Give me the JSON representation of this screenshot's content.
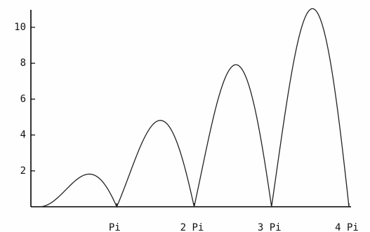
{
  "chart_data": {
    "type": "line",
    "title": "",
    "xlabel": "",
    "ylabel": "",
    "function": "x * |sin(x)|",
    "xlim": [
      0,
      12.566
    ],
    "ylim": [
      0,
      11.2
    ],
    "x_ticks": [
      {
        "value": 3.1416,
        "label": "Pi"
      },
      {
        "value": 6.2832,
        "label": "2 Pi"
      },
      {
        "value": 9.4248,
        "label": "3 Pi"
      },
      {
        "value": 12.5664,
        "label": "4 Pi"
      }
    ],
    "y_ticks": [
      {
        "value": 2,
        "label": "2"
      },
      {
        "value": 4,
        "label": "4"
      },
      {
        "value": 6,
        "label": "6"
      },
      {
        "value": 8,
        "label": "8"
      },
      {
        "value": 10,
        "label": "10"
      }
    ],
    "grid": false,
    "legend": "none",
    "series": [
      {
        "x": [
          0,
          0.5,
          1.0,
          1.5,
          1.83,
          2.0,
          2.5,
          3.0,
          3.1416,
          3.5,
          4.0,
          4.5,
          4.91,
          5.5,
          6.0,
          6.2832,
          6.6,
          7.0,
          7.5,
          7.98,
          8.5,
          9.0,
          9.4248,
          9.8,
          10.2,
          10.7,
          11.09,
          11.5,
          12.0,
          12.5664
        ],
        "y": [
          0,
          0.24,
          0.84,
          1.5,
          1.82,
          1.82,
          1.5,
          0.42,
          0,
          1.23,
          3.03,
          4.4,
          4.81,
          3.89,
          1.68,
          0,
          2.07,
          4.6,
          7.04,
          7.92,
          6.83,
          3.71,
          0,
          3.61,
          7.33,
          10.31,
          11.04,
          10.24,
          6.44,
          0
        ]
      }
    ]
  }
}
